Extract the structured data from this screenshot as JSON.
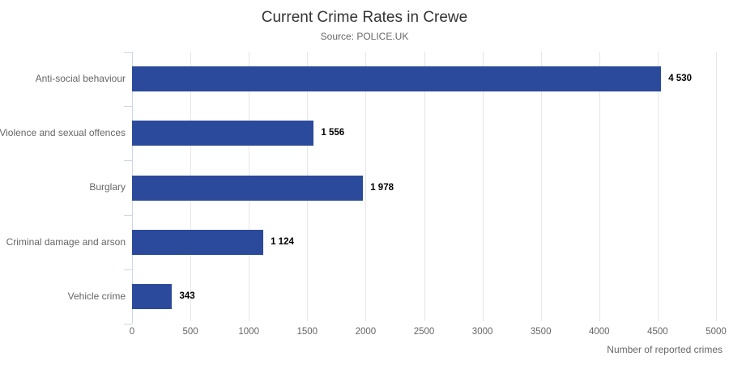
{
  "chart_data": {
    "type": "bar",
    "orientation": "horizontal",
    "title": "Current Crime Rates in Crewe",
    "subtitle": "Source: POLICE.UK",
    "categories": [
      "Anti-social behaviour",
      "Violence and sexual offences",
      "Burglary",
      "Criminal damage and arson",
      "Vehicle crime"
    ],
    "values": [
      4530,
      1556,
      1978,
      1124,
      343
    ],
    "value_labels": [
      "4 530",
      "1 556",
      "1 978",
      "1 124",
      "343"
    ],
    "xlabel": "Number of reported crimes",
    "ylabel": "",
    "xlim": [
      0,
      5000
    ],
    "x_ticks": [
      0,
      500,
      1000,
      1500,
      2000,
      2500,
      3000,
      3500,
      4000,
      4500,
      5000
    ],
    "x_tick_labels": [
      "0",
      "500",
      "1000",
      "1500",
      "2000",
      "2500",
      "3000",
      "3500",
      "4000",
      "4500",
      "5000"
    ],
    "grid": true,
    "legend": "none",
    "colors": {
      "bar": "#2b4a9b",
      "gridline": "#e6e6e6",
      "axis": "#ccd6eb",
      "title": "#333333",
      "muted_text": "#666666",
      "value_text": "#000000",
      "background": "#ffffff"
    }
  }
}
